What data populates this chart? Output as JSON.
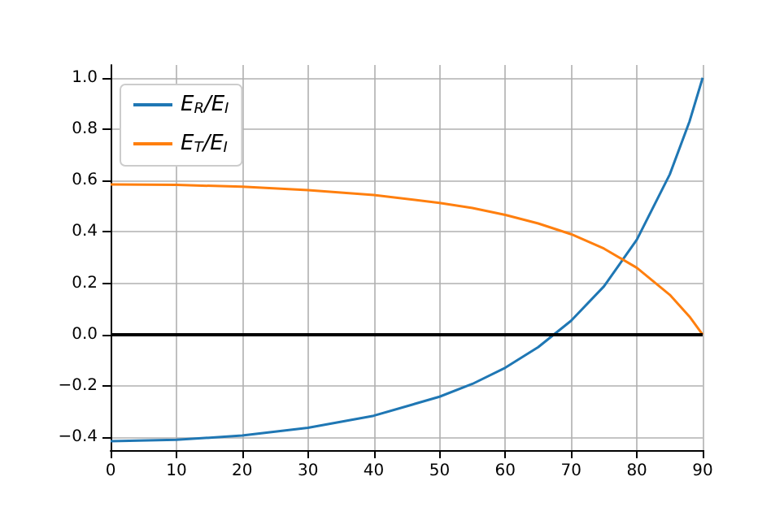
{
  "chart_data": {
    "type": "line",
    "x": [
      0,
      10,
      20,
      30,
      40,
      50,
      55,
      60,
      65,
      70,
      75,
      80,
      85,
      88,
      90
    ],
    "series": [
      {
        "name": "E$_{R}$/E$_{I}$",
        "color": "#1f77b4",
        "values": [
          -0.415,
          -0.41,
          -0.393,
          -0.363,
          -0.316,
          -0.242,
          -0.192,
          -0.129,
          -0.049,
          0.054,
          0.188,
          0.37,
          0.624,
          0.83,
          1.0
        ]
      },
      {
        "name": "E$_{T}$/E$_{I}$",
        "color": "#ff7f0e",
        "values": [
          0.585,
          0.583,
          0.576,
          0.563,
          0.544,
          0.513,
          0.493,
          0.466,
          0.433,
          0.391,
          0.335,
          0.26,
          0.155,
          0.07,
          0.0
        ]
      }
    ],
    "xlim": [
      0,
      90
    ],
    "xticks": [
      0,
      10,
      20,
      30,
      40,
      50,
      60,
      70,
      80,
      90
    ],
    "ylim": [
      -0.45,
      1.05
    ],
    "yticks": [
      {
        "value": -0.4,
        "label": "−0.4"
      },
      {
        "value": -0.2,
        "label": "−0.2"
      },
      {
        "value": 0,
        "label": "0.0"
      },
      {
        "value": 0.2,
        "label": "0.2"
      },
      {
        "value": 0.4,
        "label": "0.4"
      },
      {
        "value": 0.6,
        "label": "0.6"
      },
      {
        "value": 0.8,
        "label": "0.8"
      },
      {
        "value": 1.0,
        "label": "1.0"
      }
    ],
    "ref_lines": [
      {
        "axis": "y",
        "value": 0,
        "color": "#000000"
      }
    ],
    "grid": true,
    "legend": "top left",
    "marker": "none",
    "line_style": "solid"
  }
}
